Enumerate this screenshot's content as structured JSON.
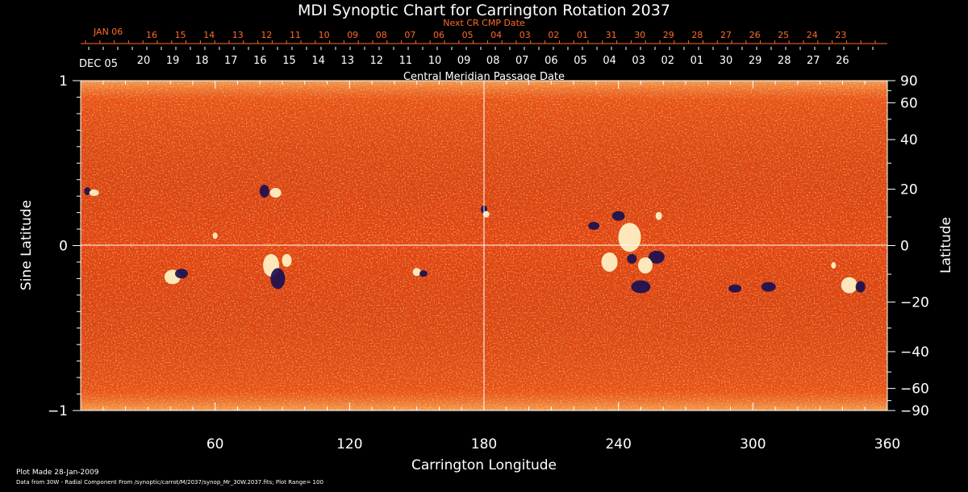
{
  "chart_data": {
    "type": "heatmap",
    "title": "MDI Synoptic Chart for Carrington Rotation 2037",
    "xlabel": "Carrington Longitude",
    "ylabel_left": "Sine Latitude",
    "ylabel_right": "Latitude",
    "x_range": [
      0,
      360
    ],
    "y_range": [
      -1,
      1
    ],
    "x_ticks": [
      "60",
      "120",
      "180",
      "240",
      "300",
      "360"
    ],
    "y_left_ticks": [
      "1",
      "0",
      "−1"
    ],
    "y_right_ticks": [
      "90",
      "60",
      "40",
      "20",
      "0",
      "−20",
      "−40",
      "−60",
      "−90"
    ],
    "top_axis_label": "Central Meridian Passage Date",
    "top_axis_start_label": "DEC 05",
    "top_axis_dates": [
      "20",
      "19",
      "18",
      "17",
      "16",
      "15",
      "14",
      "13",
      "12",
      "11",
      "10",
      "09",
      "08",
      "07",
      "06",
      "05",
      "04",
      "03",
      "02",
      "01",
      "30",
      "29",
      "28",
      "27",
      "26"
    ],
    "next_cr_label": "Next CR CMP Date",
    "next_cr_start_label": "JAN 06",
    "next_cr_dates": [
      "16",
      "15",
      "14",
      "13",
      "12",
      "11",
      "10",
      "09",
      "08",
      "07",
      "06",
      "05",
      "04",
      "03",
      "02",
      "01",
      "31",
      "30",
      "29",
      "28",
      "27",
      "26",
      "25",
      "24",
      "23"
    ],
    "colors": {
      "background": "#000000",
      "map_base": "#e8430c",
      "positive": "#fff4c8",
      "negative": "#1a1050",
      "accent_text": "#ff6a2a"
    },
    "footnotes": {
      "plot_made": "Plot Made 28-Jan-2009",
      "data_source": "Data from 30W - Radial Component From /synoptic/carrot/M/2037/synop_Mr_30W.2037.fits; Plot Range=  100"
    }
  }
}
